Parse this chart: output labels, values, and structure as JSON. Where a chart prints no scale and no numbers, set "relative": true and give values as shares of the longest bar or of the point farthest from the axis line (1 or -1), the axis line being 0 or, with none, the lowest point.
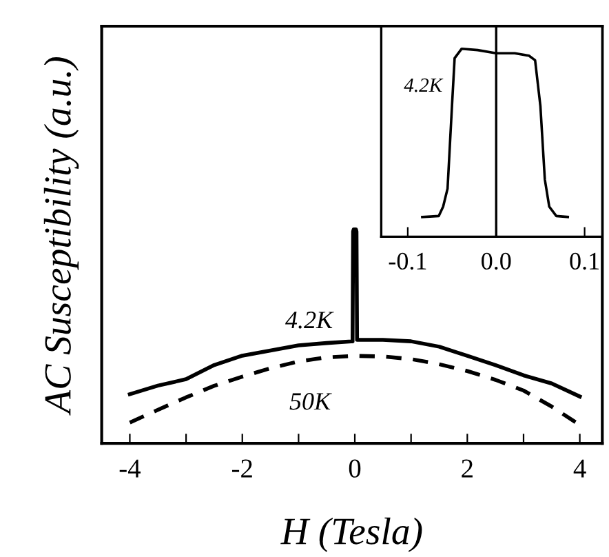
{
  "chart_data": [
    {
      "type": "line",
      "xlabel": "H (Tesla)",
      "ylabel": "AC Susceptibility (a.u.)",
      "relative": true,
      "xlim": [
        -4.5,
        4.4
      ],
      "xticks": [
        -4,
        {
          "value": -3,
          "label": null
        },
        -2,
        {
          "value": -1,
          "label": null
        },
        0,
        {
          "value": 1,
          "label": null
        },
        2,
        {
          "value": 3,
          "label": null
        },
        4
      ],
      "grid": false,
      "legend": false,
      "series": [
        {
          "name": "4.2K",
          "color": "#000000",
          "line_style": "solid",
          "x": [
            -4,
            -3.5,
            -3,
            -2.5,
            -2,
            -1.5,
            -1,
            -0.5,
            -0.05,
            -0.04,
            -0.03,
            -0.02,
            0.02,
            0.03,
            0.04,
            0.05,
            0.5,
            1,
            1.5,
            2,
            2.5,
            3,
            3.5,
            4
          ],
          "values": [
            0.23,
            0.27,
            0.3,
            0.366,
            0.41,
            0.434,
            0.458,
            0.469,
            0.477,
            0.477,
            0.99,
            1.0,
            1.0,
            0.99,
            0.484,
            0.484,
            0.484,
            0.477,
            0.452,
            0.409,
            0.366,
            0.318,
            0.28,
            0.219
          ]
        },
        {
          "name": "50K",
          "color": "#000000",
          "line_style": "dashed",
          "x": [
            -4,
            -3.5,
            -3,
            -2.5,
            -2,
            -1.5,
            -1,
            -0.5,
            0,
            0.5,
            1,
            1.5,
            2,
            2.5,
            3,
            3.5,
            4
          ],
          "values": [
            0.097,
            0.157,
            0.215,
            0.269,
            0.312,
            0.351,
            0.383,
            0.402,
            0.409,
            0.406,
            0.394,
            0.37,
            0.338,
            0.297,
            0.247,
            0.172,
            0.086
          ]
        }
      ]
    },
    {
      "type": "line",
      "relative": true,
      "xlim": [
        -0.13,
        0.12
      ],
      "xticks": [
        {
          "value": -0.1,
          "label": "-0.1"
        },
        {
          "value": 0.0,
          "label": "0.0"
        },
        {
          "value": 0.1,
          "label": "0.1"
        }
      ],
      "grid": false,
      "legend": false,
      "ref_lines": [
        {
          "axis": "x",
          "value": 0,
          "color": "#000000"
        }
      ],
      "series": [
        {
          "name": "4.2K",
          "color": "#000000",
          "line_style": "solid",
          "x": [
            -0.0836,
            -0.065,
            -0.06,
            -0.055,
            -0.05,
            -0.047,
            -0.039,
            -0.021,
            0,
            0.021,
            0.037,
            0.044,
            0.05,
            0.055,
            0.06,
            0.068,
            0.081
          ],
          "values": [
            0.105,
            0.11,
            0.16,
            0.256,
            0.695,
            0.95,
            1.0,
            0.993,
            0.976,
            0.976,
            0.963,
            0.939,
            0.695,
            0.305,
            0.16,
            0.11,
            0.105
          ]
        }
      ]
    }
  ]
}
